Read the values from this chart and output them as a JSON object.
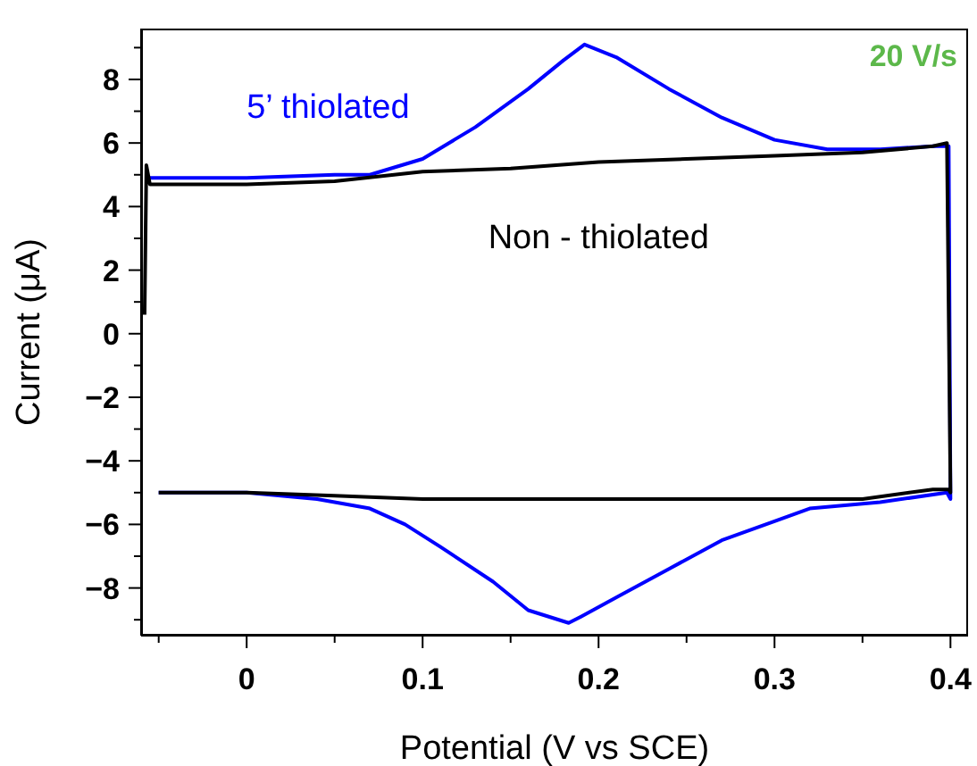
{
  "chart_data": {
    "type": "line",
    "xlabel": "Potential (V vs SCE)",
    "ylabel": "Current (μA)",
    "annotations": [
      "20 V/s"
    ],
    "xlim": [
      -0.06,
      0.41
    ],
    "ylim": [
      -9.5,
      9.6
    ],
    "xticks": [
      {
        "value": -0.05,
        "label": null
      },
      0,
      {
        "value": 0.05,
        "label": null
      },
      0.1,
      {
        "value": 0.15,
        "label": null
      },
      0.2,
      {
        "value": 0.25,
        "label": null
      },
      0.3,
      {
        "value": 0.35,
        "label": null
      },
      0.4
    ],
    "yticks": [
      {
        "value": -9,
        "label": null
      },
      -8,
      {
        "value": -7,
        "label": null
      },
      -6,
      {
        "value": -5,
        "label": null
      },
      -4,
      {
        "value": -3,
        "label": null
      },
      -2,
      {
        "value": -1,
        "label": null
      },
      0,
      {
        "value": 1,
        "label": null
      },
      2,
      {
        "value": 3,
        "label": null
      },
      4,
      {
        "value": 5,
        "label": null
      },
      6,
      {
        "value": 7,
        "label": null
      },
      8,
      {
        "value": 9,
        "label": null
      }
    ],
    "grid": false,
    "legend": false,
    "marker": "none",
    "line_style": "solid",
    "series": [
      {
        "name": "5’ thiolated",
        "color": "#0000ff",
        "x": [
          -0.056,
          -0.05,
          0,
          0.05,
          0.07,
          0.1,
          0.13,
          0.16,
          0.18,
          0.192,
          0.21,
          0.24,
          0.27,
          0.3,
          0.33,
          0.36,
          0.39,
          0.399,
          0.4,
          0.398,
          0.36,
          0.32,
          0.3,
          0.27,
          0.24,
          0.21,
          0.19,
          0.183,
          0.16,
          0.14,
          0.11,
          0.09,
          0.07,
          0.04,
          0,
          -0.05
        ],
        "values": [
          4.9,
          4.9,
          4.9,
          5.0,
          5.0,
          5.5,
          6.5,
          7.7,
          8.6,
          9.1,
          8.7,
          7.7,
          6.8,
          6.1,
          5.8,
          5.8,
          5.9,
          5.9,
          -5.2,
          -5.0,
          -5.3,
          -5.5,
          -5.9,
          -6.5,
          -7.4,
          -8.3,
          -8.9,
          -9.1,
          -8.7,
          -7.8,
          -6.7,
          -6.0,
          -5.5,
          -5.2,
          -5.0,
          -5.0
        ]
      },
      {
        "name": "Non - thiolated",
        "color": "#000000",
        "x": [
          -0.058,
          -0.057,
          -0.055,
          0,
          0.05,
          0.1,
          0.15,
          0.2,
          0.25,
          0.3,
          0.35,
          0.39,
          0.398,
          0.4,
          0.399,
          0.39,
          0.35,
          0.3,
          0.2,
          0.1,
          0.05,
          0,
          -0.05
        ],
        "values": [
          0.6,
          5.3,
          4.7,
          4.7,
          4.8,
          5.1,
          5.2,
          5.4,
          5.5,
          5.6,
          5.7,
          5.9,
          6.0,
          -5.0,
          -4.9,
          -4.9,
          -5.2,
          -5.2,
          -5.2,
          -5.2,
          -5.1,
          -5.0,
          -5.0
        ]
      }
    ]
  }
}
